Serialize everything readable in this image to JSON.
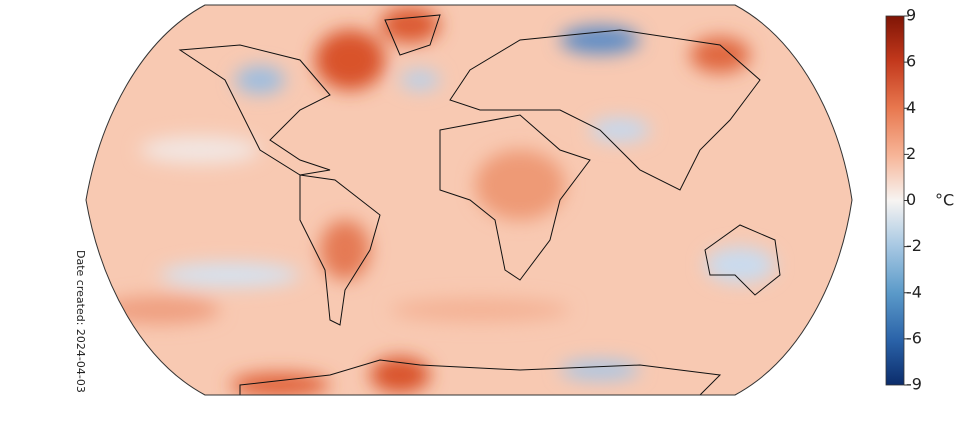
{
  "date_label": "Date created: 2024-04-03",
  "colorbar": {
    "unit": "°C",
    "ticks": [
      9,
      6,
      4,
      2,
      0,
      -2,
      -4,
      -6,
      -9
    ]
  }
}
